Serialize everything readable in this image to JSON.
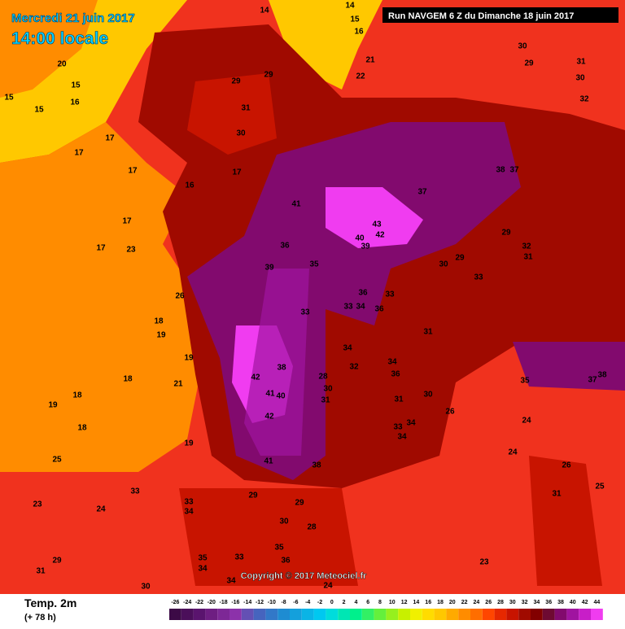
{
  "header": {
    "date": "Mercredi 21 juin 2017",
    "time": "14:00 locale",
    "run": "Run NAVGEM 6 Z du Dimanche 18 juin 2017"
  },
  "footer": {
    "variable": "Temp. 2m",
    "lead": "(+ 78 h)",
    "copyright": "Copyright © 2017 Meteociel.fr"
  },
  "map_labels": [
    29,
    29,
    31,
    30,
    17,
    17,
    17,
    17,
    16,
    41,
    43,
    40,
    42,
    39,
    36,
    39,
    35,
    33,
    36,
    33,
    34,
    36,
    33,
    31,
    34,
    32,
    34,
    36,
    28,
    30,
    31,
    31,
    30,
    26,
    33,
    34,
    34,
    42,
    41,
    40,
    42,
    38,
    41,
    38,
    18,
    19,
    19,
    21,
    18,
    18,
    19,
    18,
    19,
    25,
    23,
    24,
    33,
    33,
    34,
    29,
    29,
    30,
    28,
    35,
    36,
    35,
    34,
    33,
    34,
    29,
    31,
    30,
    24,
    23,
    24,
    24,
    26,
    25,
    31,
    30,
    29,
    30,
    31,
    32,
    38,
    37,
    37,
    29,
    32,
    31,
    30,
    29,
    33,
    35,
    37,
    38,
    20,
    15,
    16,
    15,
    15,
    14,
    14,
    15,
    16,
    21,
    22,
    17,
    17,
    23,
    26
  ],
  "legend": {
    "values": [
      -26,
      -24,
      -22,
      -20,
      -18,
      -16,
      -14,
      -12,
      -10,
      -8,
      -6,
      -4,
      -2,
      0,
      2,
      4,
      6,
      8,
      10,
      12,
      14,
      16,
      18,
      20,
      22,
      24,
      26,
      28,
      30,
      32,
      34,
      36,
      38,
      40,
      42,
      44
    ],
    "colors": [
      "#3c0a46",
      "#4b0f5a",
      "#5a146e",
      "#6e1e82",
      "#7d2896",
      "#8c32aa",
      "#6450b4",
      "#4664be",
      "#3278c8",
      "#1e8cd2",
      "#14a0dc",
      "#0ab4e6",
      "#00c8f0",
      "#00dcdc",
      "#00e6b4",
      "#00f08c",
      "#32f064",
      "#64f03c",
      "#96f01e",
      "#c8f000",
      "#f0f000",
      "#ffdc00",
      "#ffc800",
      "#ffaa00",
      "#ff8c00",
      "#ff6e00",
      "#ff4600",
      "#e62800",
      "#c81400",
      "#a00a00",
      "#820000",
      "#6e0a32",
      "#820a6e",
      "#a014a0",
      "#c81ec8",
      "#f03cf0"
    ]
  }
}
